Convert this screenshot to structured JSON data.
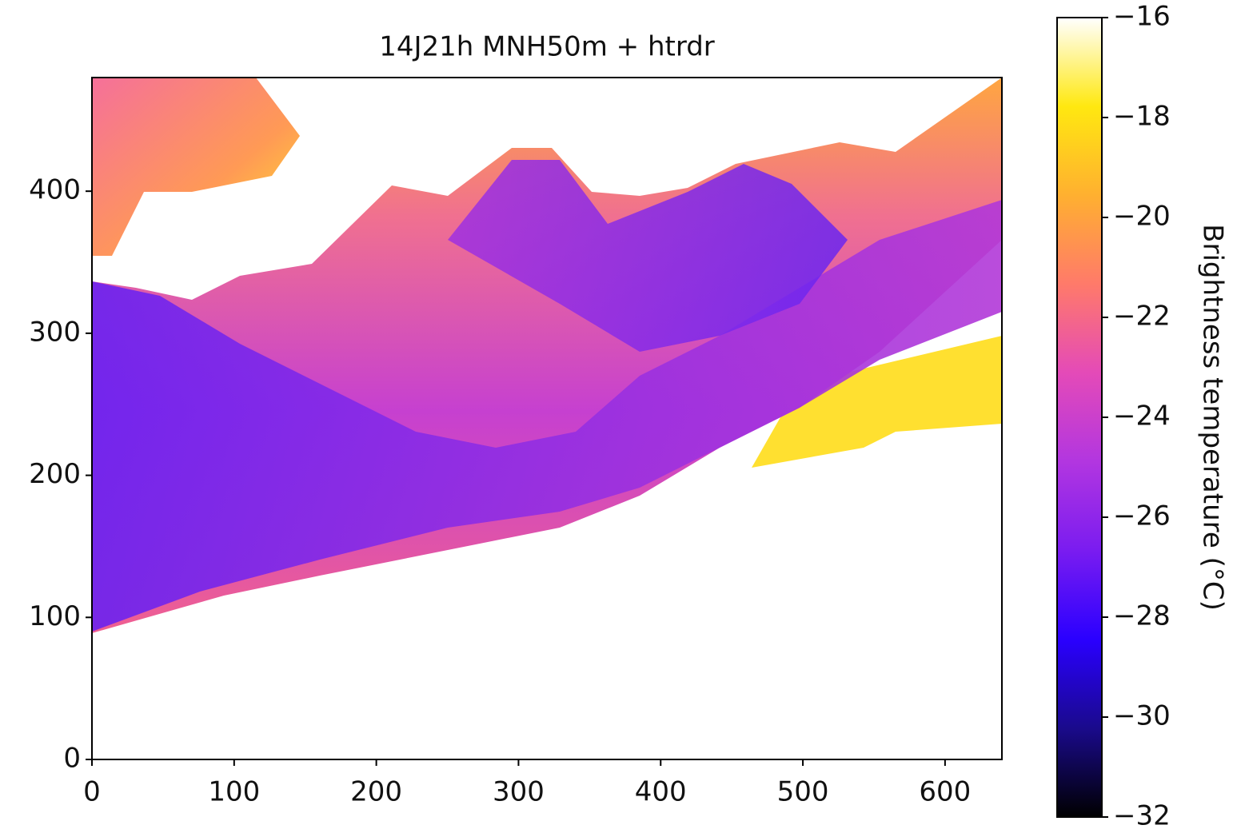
{
  "chart_data": {
    "type": "image",
    "title": "14J21h MNH50m + htrdr",
    "xlim": [
      0,
      640
    ],
    "ylim": [
      0,
      480
    ],
    "xticks": [
      0,
      100,
      200,
      300,
      400,
      500,
      600
    ],
    "yticks": [
      0,
      100,
      200,
      300,
      400
    ],
    "colorbar": {
      "label": "Brightness temperature (°C)",
      "lim": [
        -32,
        -16
      ],
      "ticks": [
        {
          "value": -32,
          "label": "−32"
        },
        {
          "value": -30,
          "label": "−30"
        },
        {
          "value": -28,
          "label": "−28"
        },
        {
          "value": -26,
          "label": "−26"
        },
        {
          "value": -24,
          "label": "−24"
        },
        {
          "value": -22,
          "label": "−22"
        },
        {
          "value": -20,
          "label": "−20"
        },
        {
          "value": -18,
          "label": "−18"
        },
        {
          "value": -16,
          "label": "−16"
        }
      ],
      "colors": [
        "#000000",
        "#1a0a8c",
        "#2a00ff",
        "#7a1cf0",
        "#b236e0",
        "#e44ab8",
        "#ff7a6a",
        "#ffb030",
        "#ffe810",
        "#ffffff"
      ]
    }
  }
}
